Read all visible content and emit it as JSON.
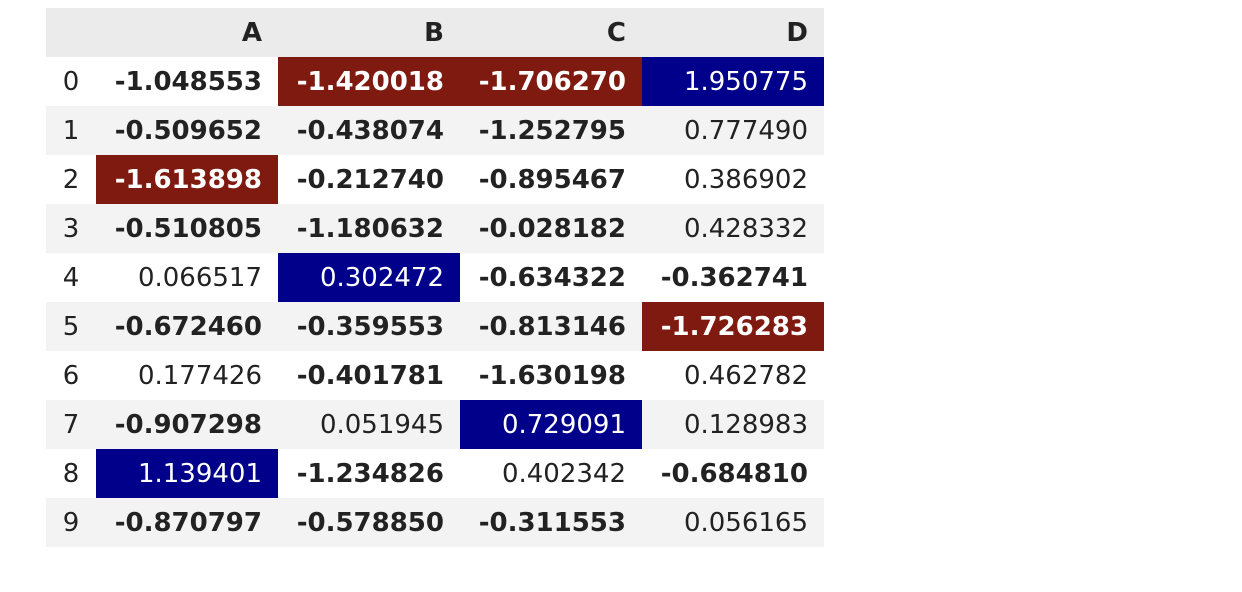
{
  "table": {
    "columns": [
      "A",
      "B",
      "C",
      "D"
    ],
    "rows": [
      {
        "index": "0",
        "cells": [
          {
            "v": "-1.048553",
            "neg": true,
            "hl": ""
          },
          {
            "v": "-1.420018",
            "neg": true,
            "hl": "min"
          },
          {
            "v": "-1.706270",
            "neg": true,
            "hl": "min"
          },
          {
            "v": "1.950775",
            "neg": false,
            "hl": "max"
          }
        ]
      },
      {
        "index": "1",
        "cells": [
          {
            "v": "-0.509652",
            "neg": true,
            "hl": ""
          },
          {
            "v": "-0.438074",
            "neg": true,
            "hl": ""
          },
          {
            "v": "-1.252795",
            "neg": true,
            "hl": ""
          },
          {
            "v": "0.777490",
            "neg": false,
            "hl": ""
          }
        ]
      },
      {
        "index": "2",
        "cells": [
          {
            "v": "-1.613898",
            "neg": true,
            "hl": "min"
          },
          {
            "v": "-0.212740",
            "neg": true,
            "hl": ""
          },
          {
            "v": "-0.895467",
            "neg": true,
            "hl": ""
          },
          {
            "v": "0.386902",
            "neg": false,
            "hl": ""
          }
        ]
      },
      {
        "index": "3",
        "cells": [
          {
            "v": "-0.510805",
            "neg": true,
            "hl": ""
          },
          {
            "v": "-1.180632",
            "neg": true,
            "hl": ""
          },
          {
            "v": "-0.028182",
            "neg": true,
            "hl": ""
          },
          {
            "v": "0.428332",
            "neg": false,
            "hl": ""
          }
        ]
      },
      {
        "index": "4",
        "cells": [
          {
            "v": "0.066517",
            "neg": false,
            "hl": ""
          },
          {
            "v": "0.302472",
            "neg": false,
            "hl": "max"
          },
          {
            "v": "-0.634322",
            "neg": true,
            "hl": ""
          },
          {
            "v": "-0.362741",
            "neg": true,
            "hl": ""
          }
        ]
      },
      {
        "index": "5",
        "cells": [
          {
            "v": "-0.672460",
            "neg": true,
            "hl": ""
          },
          {
            "v": "-0.359553",
            "neg": true,
            "hl": ""
          },
          {
            "v": "-0.813146",
            "neg": true,
            "hl": ""
          },
          {
            "v": "-1.726283",
            "neg": true,
            "hl": "min"
          }
        ]
      },
      {
        "index": "6",
        "cells": [
          {
            "v": "0.177426",
            "neg": false,
            "hl": ""
          },
          {
            "v": "-0.401781",
            "neg": true,
            "hl": ""
          },
          {
            "v": "-1.630198",
            "neg": true,
            "hl": ""
          },
          {
            "v": "0.462782",
            "neg": false,
            "hl": ""
          }
        ]
      },
      {
        "index": "7",
        "cells": [
          {
            "v": "-0.907298",
            "neg": true,
            "hl": ""
          },
          {
            "v": "0.051945",
            "neg": false,
            "hl": ""
          },
          {
            "v": "0.729091",
            "neg": false,
            "hl": "max"
          },
          {
            "v": "0.128983",
            "neg": false,
            "hl": ""
          }
        ]
      },
      {
        "index": "8",
        "cells": [
          {
            "v": "1.139401",
            "neg": false,
            "hl": "max"
          },
          {
            "v": "-1.234826",
            "neg": true,
            "hl": ""
          },
          {
            "v": "0.402342",
            "neg": false,
            "hl": ""
          },
          {
            "v": "-0.684810",
            "neg": true,
            "hl": ""
          }
        ]
      },
      {
        "index": "9",
        "cells": [
          {
            "v": "-0.870797",
            "neg": true,
            "hl": ""
          },
          {
            "v": "-0.578850",
            "neg": true,
            "hl": ""
          },
          {
            "v": "-0.311553",
            "neg": true,
            "hl": ""
          },
          {
            "v": "0.056165",
            "neg": false,
            "hl": ""
          }
        ]
      }
    ]
  },
  "colors": {
    "max_highlight": "#00008b",
    "min_highlight": "#7f1a10",
    "header_bg": "#ebebeb",
    "stripe_bg": "#f3f3f3"
  }
}
